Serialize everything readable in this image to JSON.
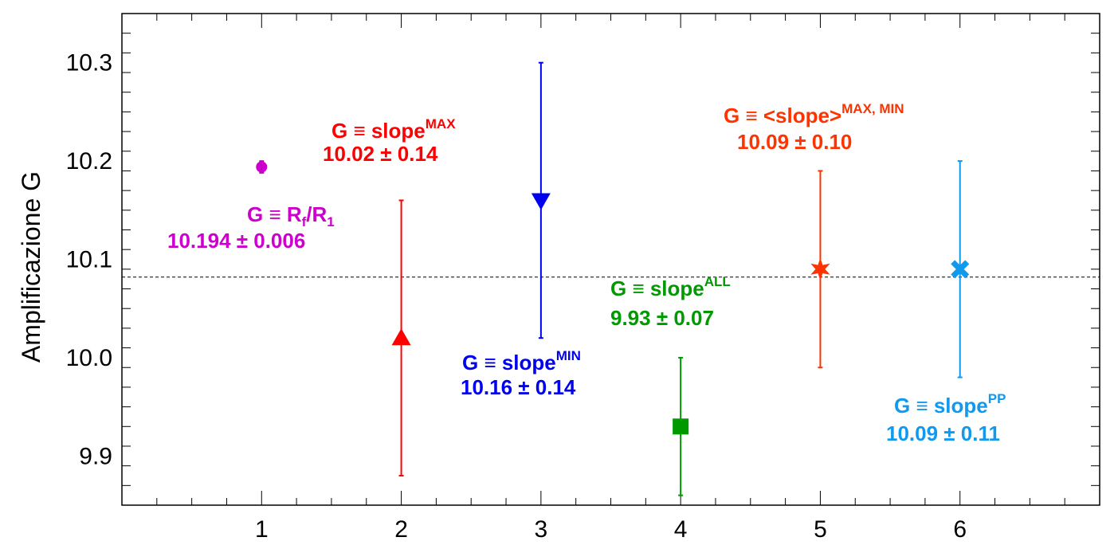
{
  "chart_data": {
    "type": "scatter",
    "ylabel": "Amplificazione G",
    "xlabel": "",
    "title": "",
    "xlim": [
      0,
      7
    ],
    "ylim": [
      9.85,
      10.35
    ],
    "xticks": [
      "1",
      "2",
      "3",
      "4",
      "5",
      "6"
    ],
    "yticks": [
      "9.9",
      "10.0",
      "10.1",
      "10.2",
      "10.3"
    ],
    "reference_line_y": 10.082,
    "grid": false,
    "points": [
      {
        "x": 1,
        "y": 10.194,
        "err": 0.006,
        "marker": "circle",
        "color": "#cc00cc",
        "label": {
          "prefix": "G ≡ R",
          "sub1": "f",
          "mid": "/R",
          "sub2": "1",
          "value": "10.194 ± 0.006"
        }
      },
      {
        "x": 2,
        "y": 10.02,
        "err": 0.14,
        "marker": "triangle-up",
        "color": "#ff0000",
        "label": {
          "prefix": "G ≡ slope",
          "sup": "MAX",
          "value": "10.02 ± 0.14"
        }
      },
      {
        "x": 3,
        "y": 10.16,
        "err": 0.14,
        "marker": "triangle-down",
        "color": "#0000ee",
        "label": {
          "prefix": "G ≡ slope",
          "sup": "MIN",
          "value": "10.16 ± 0.14"
        }
      },
      {
        "x": 4,
        "y": 9.93,
        "err": 0.07,
        "marker": "square",
        "color": "#009900",
        "label": {
          "prefix": "G ≡ slope",
          "sup": "ALL",
          "value": "9.93 ± 0.07"
        }
      },
      {
        "x": 5,
        "y": 10.09,
        "err": 0.1,
        "marker": "star",
        "color": "#ff3300",
        "label": {
          "prefix": "G ≡ <slope>",
          "sup": "MAX, MIN",
          "value": "10.09 ± 0.10"
        }
      },
      {
        "x": 6,
        "y": 10.09,
        "err": 0.11,
        "marker": "cross",
        "color": "#1199ee",
        "label": {
          "prefix": "G ≡ slope",
          "sup": "PP",
          "value": "10.09 ± 0.11"
        }
      }
    ]
  }
}
